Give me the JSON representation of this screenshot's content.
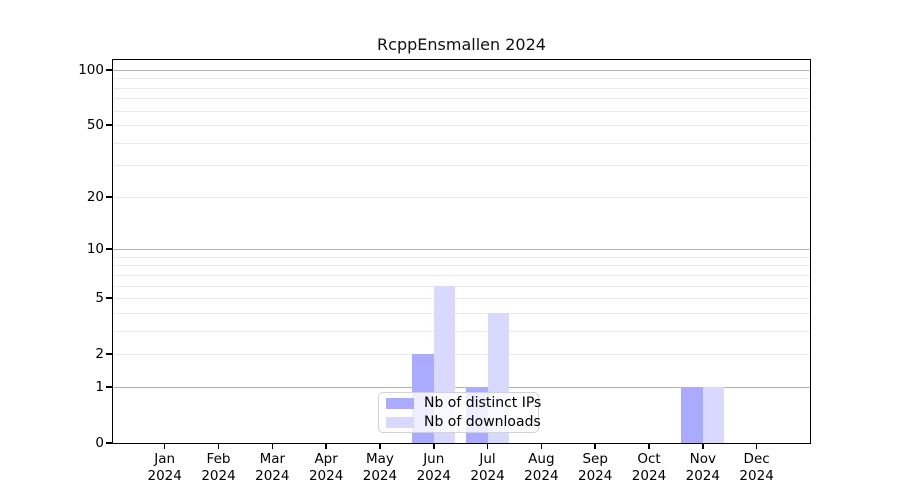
{
  "chart_data": {
    "type": "bar",
    "title": "RcppEnsmallen 2024",
    "categories": [
      "Jan 2024",
      "Feb 2024",
      "Mar 2024",
      "Apr 2024",
      "May 2024",
      "Jun 2024",
      "Jul 2024",
      "Aug 2024",
      "Sep 2024",
      "Oct 2024",
      "Nov 2024",
      "Dec 2024"
    ],
    "series": [
      {
        "name": "Nb of distinct IPs",
        "color": "#aaaaff",
        "values": [
          0,
          0,
          0,
          0,
          0,
          2,
          1,
          0,
          0,
          0,
          1,
          0
        ]
      },
      {
        "name": "Nb of downloads",
        "color": "#d9d9ff",
        "values": [
          0,
          0,
          0,
          0,
          0,
          6,
          4,
          0,
          0,
          0,
          1,
          0
        ]
      }
    ],
    "xlabel": "",
    "ylabel": "",
    "yscale": "log1p",
    "ylim": [
      0,
      113
    ],
    "yticks": [
      0,
      1,
      2,
      5,
      10,
      20,
      50,
      100
    ],
    "major_gridlines": [
      1,
      10,
      100
    ],
    "minor_gridlines": [
      2,
      3,
      4,
      5,
      6,
      7,
      8,
      9,
      20,
      30,
      40,
      50,
      60,
      70,
      80,
      90
    ],
    "grid": true,
    "legend_position": "bottom-center",
    "colors": {
      "frame": "#000000",
      "major_grid": "#b2b2b2",
      "minor_grid": "#ebebeb",
      "text": "#000000"
    }
  }
}
